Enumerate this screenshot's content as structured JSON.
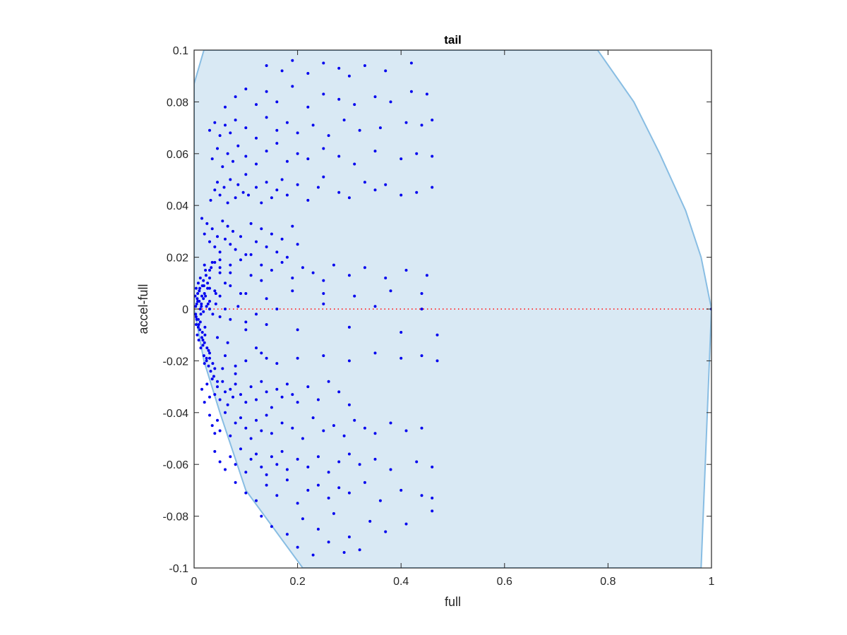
{
  "chart_data": {
    "type": "scatter",
    "title": "tail",
    "xlabel": "full",
    "ylabel": "accel-full",
    "xlim": [
      0,
      1
    ],
    "ylim": [
      -0.1,
      0.1
    ],
    "grid": false,
    "x_ticks": [
      0,
      0.2,
      0.4,
      0.6,
      0.8,
      1
    ],
    "x_tick_labels": [
      "0",
      "0.2",
      "0.4",
      "0.6",
      "0.8",
      "1"
    ],
    "y_ticks": [
      -0.1,
      -0.08,
      -0.06,
      -0.04,
      -0.02,
      0,
      0.02,
      0.04,
      0.06,
      0.08,
      0.1
    ],
    "y_tick_labels": [
      "-0.1",
      "-0.08",
      "-0.06",
      "-0.04",
      "-0.02",
      "0",
      "0.02",
      "0.04",
      "0.06",
      "0.08",
      "0.1"
    ],
    "colors": {
      "region_fill": "#d9e9f4",
      "region_edge": "#88bde3",
      "points": "#0000ee",
      "zero_line": "#ff3b3b",
      "axes": "#262626"
    },
    "feasible_region": {
      "x": [
        0,
        0.019,
        0.05,
        0.1,
        0.2,
        0.3,
        0.4,
        0.5,
        0.6,
        0.7,
        0.78,
        0.85,
        0.9,
        0.95,
        0.98,
        1.0,
        0.98,
        0.95,
        0.9,
        0.8,
        0.7,
        0.6,
        0.5,
        0.4,
        0.3,
        0.21,
        0.1,
        0.05,
        0.019,
        0
      ],
      "y": [
        0.087,
        0.1,
        0.1,
        0.1,
        0.1,
        0.1,
        0.1,
        0.1,
        0.1,
        0.1,
        0.1,
        0.08,
        0.06,
        0.038,
        0.02,
        0,
        -0.1,
        -0.1,
        -0.1,
        -0.1,
        -0.1,
        -0.1,
        -0.1,
        -0.1,
        -0.1,
        -0.1,
        -0.07,
        -0.04,
        -0.02,
        0
      ]
    },
    "reference_line": {
      "y": 0,
      "style": "dotted"
    },
    "series": [
      {
        "x": [
          0.002,
          0.003,
          0.004,
          0.004,
          0.005,
          0.006,
          0.007,
          0.008,
          0.008,
          0.009,
          0.01,
          0.011,
          0.012,
          0.013,
          0.014,
          0.015,
          0.016,
          0.017,
          0.018,
          0.019,
          0.02,
          0.021,
          0.022,
          0.024,
          0.026,
          0.028,
          0.03,
          0.004,
          0.006,
          0.008,
          0.01,
          0.012,
          0.014,
          0.016,
          0.018,
          0.02,
          0.022,
          0.024,
          0.026,
          0.028,
          0.03,
          0.032,
          0.035,
          0.038,
          0.042,
          0.045,
          0.05,
          0.003,
          0.005,
          0.007,
          0.009,
          0.011,
          0.013,
          0.015,
          0.017,
          0.019,
          0.021,
          0.023,
          0.025,
          0.027,
          0.03,
          0.033,
          0.036,
          0.04,
          0.045,
          0.05,
          0.055,
          0.06,
          0.065,
          0.07,
          0.08,
          0.09,
          0.1,
          0.11,
          0.12,
          0.13,
          0.14,
          0.015,
          0.02,
          0.025,
          0.03,
          0.035,
          0.04,
          0.045,
          0.05,
          0.055,
          0.06,
          0.065,
          0.07,
          0.075,
          0.08,
          0.09,
          0.1,
          0.11,
          0.12,
          0.13,
          0.14,
          0.15,
          0.16,
          0.17,
          0.18,
          0.19,
          0.2,
          0.015,
          0.02,
          0.025,
          0.03,
          0.035,
          0.04,
          0.045,
          0.05,
          0.055,
          0.06,
          0.065,
          0.07,
          0.075,
          0.08,
          0.09,
          0.1,
          0.11,
          0.12,
          0.13,
          0.14,
          0.15,
          0.16,
          0.17,
          0.18,
          0.19,
          0.2,
          0.22,
          0.24,
          0.26,
          0.28,
          0.3,
          0.032,
          0.04,
          0.045,
          0.05,
          0.058,
          0.065,
          0.07,
          0.08,
          0.085,
          0.095,
          0.1,
          0.105,
          0.12,
          0.13,
          0.14,
          0.15,
          0.16,
          0.17,
          0.18,
          0.2,
          0.22,
          0.24,
          0.25,
          0.28,
          0.3,
          0.33,
          0.35,
          0.37,
          0.4,
          0.43,
          0.46,
          0.03,
          0.035,
          0.04,
          0.045,
          0.05,
          0.06,
          0.07,
          0.08,
          0.09,
          0.1,
          0.11,
          0.12,
          0.13,
          0.14,
          0.15,
          0.17,
          0.19,
          0.21,
          0.23,
          0.25,
          0.27,
          0.29,
          0.31,
          0.33,
          0.35,
          0.38,
          0.41,
          0.44,
          0.035,
          0.045,
          0.055,
          0.065,
          0.075,
          0.085,
          0.1,
          0.12,
          0.14,
          0.16,
          0.18,
          0.2,
          0.22,
          0.25,
          0.28,
          0.31,
          0.35,
          0.4,
          0.43,
          0.46,
          0.04,
          0.05,
          0.06,
          0.07,
          0.08,
          0.09,
          0.1,
          0.11,
          0.12,
          0.13,
          0.14,
          0.15,
          0.16,
          0.17,
          0.18,
          0.2,
          0.22,
          0.24,
          0.26,
          0.28,
          0.3,
          0.32,
          0.35,
          0.38,
          0.43,
          0.46,
          0.03,
          0.04,
          0.05,
          0.06,
          0.07,
          0.08,
          0.1,
          0.12,
          0.14,
          0.16,
          0.18,
          0.2,
          0.23,
          0.26,
          0.29,
          0.32,
          0.36,
          0.41,
          0.44,
          0.46,
          0.08,
          0.1,
          0.12,
          0.14,
          0.16,
          0.18,
          0.2,
          0.22,
          0.24,
          0.26,
          0.28,
          0.3,
          0.33,
          0.36,
          0.4,
          0.44,
          0.46,
          0.06,
          0.08,
          0.1,
          0.12,
          0.14,
          0.16,
          0.19,
          0.22,
          0.25,
          0.28,
          0.31,
          0.35,
          0.38,
          0.42,
          0.45,
          0.13,
          0.15,
          0.18,
          0.21,
          0.24,
          0.27,
          0.3,
          0.34,
          0.37,
          0.41,
          0.46,
          0.14,
          0.17,
          0.19,
          0.22,
          0.25,
          0.28,
          0.3,
          0.33,
          0.37,
          0.42,
          0.2,
          0.23,
          0.26,
          0.29,
          0.32,
          0.02,
          0.03,
          0.04,
          0.05,
          0.07,
          0.09,
          0.11,
          0.13,
          0.15,
          0.17,
          0.19,
          0.21,
          0.23,
          0.25,
          0.27,
          0.3,
          0.33,
          0.37,
          0.41,
          0.45,
          0.02,
          0.03,
          0.04,
          0.06,
          0.08,
          0.1,
          0.13,
          0.16,
          0.2,
          0.25,
          0.3,
          0.35,
          0.4,
          0.44,
          0.47,
          0.03,
          0.05,
          0.07,
          0.1,
          0.14,
          0.19,
          0.25,
          0.31,
          0.38,
          0.44,
          0.012,
          0.018,
          0.024,
          0.03,
          0.036,
          0.042,
          0.05,
          0.06,
          0.07,
          0.085,
          0.1,
          0.12,
          0.14,
          0.16,
          0.2,
          0.25,
          0.3,
          0.35,
          0.4,
          0.44,
          0.47,
          1.0
        ],
        "y": [
          0.005,
          -0.002,
          0.008,
          -0.006,
          0.002,
          -0.01,
          0.006,
          -0.004,
          0.01,
          -0.012,
          0.003,
          -0.008,
          0.012,
          -0.015,
          0.001,
          -0.011,
          0.009,
          -0.014,
          0.004,
          -0.018,
          0.006,
          -0.01,
          0.015,
          -0.02,
          0.008,
          -0.016,
          0.012,
          -0.003,
          0.004,
          -0.007,
          0.007,
          -0.005,
          0.002,
          -0.009,
          0.011,
          -0.013,
          0.005,
          -0.019,
          0.01,
          -0.022,
          0.003,
          -0.024,
          0.018,
          -0.026,
          0.006,
          -0.028,
          0.014,
          0.001,
          -0.004,
          0.003,
          -0.006,
          0.008,
          -0.002,
          0.005,
          -0.012,
          0.009,
          -0.007,
          0.013,
          -0.015,
          0.002,
          -0.017,
          0.016,
          -0.021,
          0.007,
          -0.011,
          0.019,
          -0.023,
          0.01,
          -0.013,
          0.017,
          -0.025,
          0.006,
          -0.008,
          0.021,
          -0.015,
          0.011,
          -0.019,
          0.035,
          0.029,
          0.033,
          0.026,
          0.031,
          0.024,
          0.028,
          0.022,
          0.034,
          0.027,
          0.032,
          0.025,
          0.03,
          0.023,
          0.028,
          0.021,
          0.033,
          0.026,
          0.031,
          0.024,
          0.029,
          0.022,
          0.027,
          0.02,
          0.032,
          0.025,
          -0.031,
          -0.036,
          -0.029,
          -0.034,
          -0.027,
          -0.033,
          -0.03,
          -0.035,
          -0.028,
          -0.032,
          -0.037,
          -0.031,
          -0.034,
          -0.029,
          -0.033,
          -0.036,
          -0.03,
          -0.035,
          -0.028,
          -0.032,
          -0.038,
          -0.031,
          -0.034,
          -0.029,
          -0.033,
          -0.036,
          -0.03,
          -0.035,
          -0.028,
          -0.032,
          -0.037,
          0.042,
          0.046,
          0.049,
          0.044,
          0.047,
          0.041,
          0.05,
          0.043,
          0.048,
          0.045,
          0.052,
          0.044,
          0.047,
          0.041,
          0.049,
          0.043,
          0.046,
          0.05,
          0.044,
          0.048,
          0.042,
          0.047,
          0.051,
          0.045,
          0.043,
          0.049,
          0.046,
          0.048,
          0.044,
          0.045,
          0.047,
          -0.041,
          -0.045,
          -0.048,
          -0.043,
          -0.047,
          -0.04,
          -0.049,
          -0.044,
          -0.042,
          -0.046,
          -0.05,
          -0.043,
          -0.047,
          -0.041,
          -0.048,
          -0.044,
          -0.046,
          -0.05,
          -0.042,
          -0.047,
          -0.045,
          -0.049,
          -0.043,
          -0.046,
          -0.048,
          -0.044,
          -0.047,
          -0.046,
          0.058,
          0.062,
          0.055,
          0.06,
          0.057,
          0.063,
          0.059,
          0.056,
          0.061,
          0.064,
          0.057,
          0.06,
          0.058,
          0.062,
          0.059,
          0.056,
          0.061,
          0.058,
          0.06,
          0.059,
          -0.055,
          -0.059,
          -0.062,
          -0.057,
          -0.06,
          -0.054,
          -0.063,
          -0.058,
          -0.056,
          -0.061,
          -0.064,
          -0.057,
          -0.06,
          -0.055,
          -0.062,
          -0.058,
          -0.061,
          -0.057,
          -0.063,
          -0.059,
          -0.056,
          -0.06,
          -0.058,
          -0.062,
          -0.059,
          -0.061,
          0.069,
          0.072,
          0.067,
          0.071,
          0.068,
          0.073,
          0.07,
          0.066,
          0.074,
          0.069,
          0.072,
          0.068,
          0.071,
          0.067,
          0.073,
          0.069,
          0.07,
          0.072,
          0.071,
          0.073,
          -0.067,
          -0.071,
          -0.074,
          -0.068,
          -0.072,
          -0.066,
          -0.075,
          -0.07,
          -0.068,
          -0.073,
          -0.069,
          -0.071,
          -0.067,
          -0.074,
          -0.07,
          -0.072,
          -0.073,
          0.078,
          0.082,
          0.085,
          0.079,
          0.084,
          0.08,
          0.086,
          0.078,
          0.083,
          0.081,
          0.079,
          0.082,
          0.08,
          0.084,
          0.083,
          -0.08,
          -0.084,
          -0.087,
          -0.081,
          -0.085,
          -0.079,
          -0.088,
          -0.082,
          -0.086,
          -0.083,
          -0.078,
          0.094,
          0.092,
          0.096,
          0.091,
          0.095,
          0.093,
          0.09,
          0.094,
          0.092,
          0.095,
          -0.092,
          -0.095,
          -0.09,
          -0.094,
          -0.093,
          0.017,
          0.015,
          0.018,
          0.016,
          0.014,
          0.019,
          0.013,
          0.017,
          0.015,
          0.018,
          0.012,
          0.016,
          0.014,
          0.011,
          0.017,
          0.013,
          0.016,
          0.012,
          0.015,
          0.013,
          -0.021,
          -0.019,
          -0.023,
          -0.018,
          -0.022,
          -0.02,
          -0.017,
          -0.021,
          -0.019,
          -0.018,
          -0.02,
          -0.017,
          -0.019,
          -0.018,
          -0.02,
          0.008,
          0.005,
          0.009,
          0.006,
          0.004,
          0.007,
          0.006,
          0.005,
          0.007,
          0.006,
          0.0,
          -0.001,
          0.001,
          0.0,
          -0.002,
          0.002,
          -0.003,
          0.0,
          -0.004,
          0.001,
          -0.005,
          -0.002,
          -0.006,
          0.0,
          -0.008,
          0.002,
          -0.007,
          0.001,
          -0.009,
          0.0,
          -0.01,
          0.0
        ]
      }
    ]
  }
}
